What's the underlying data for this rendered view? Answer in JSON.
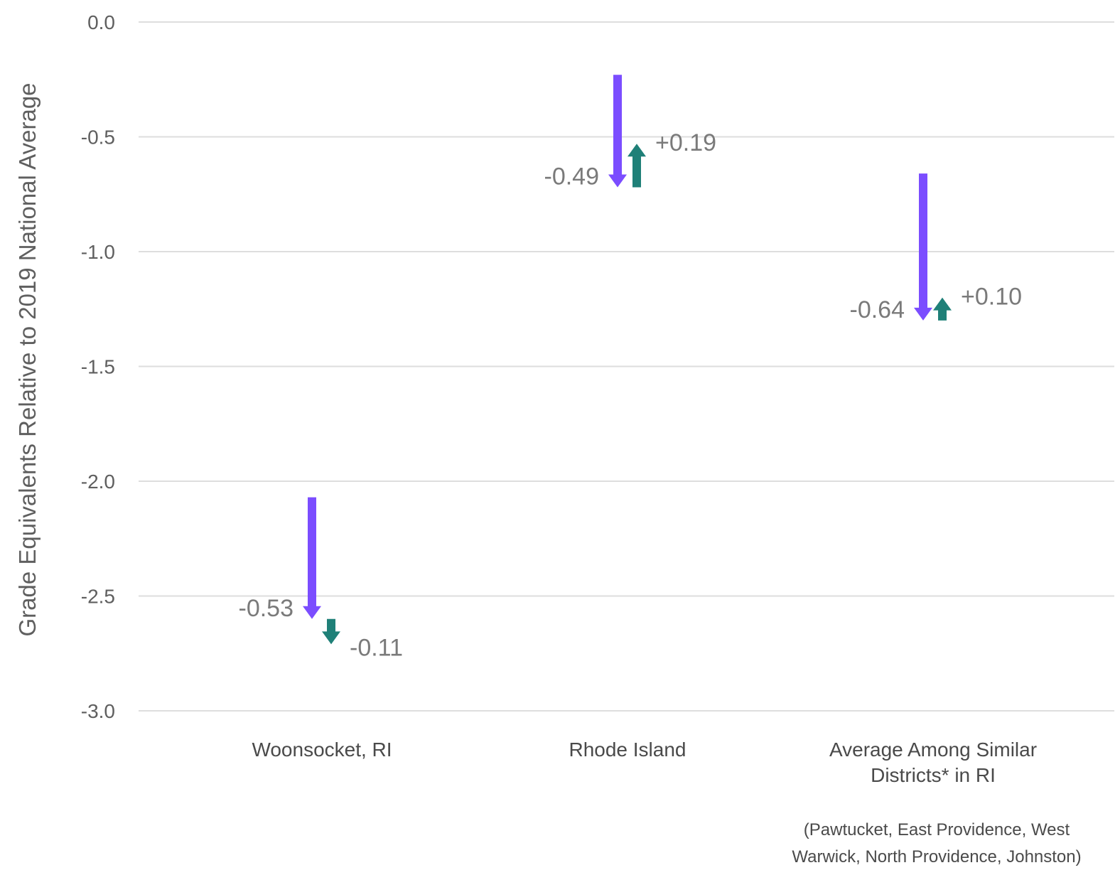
{
  "chart_data": {
    "type": "arrow",
    "ylabel": "Grade Equivalents Relative to 2019 National Average",
    "ylim": [
      -3.0,
      0.0
    ],
    "yticks": [
      "0.0",
      "-0.5",
      "-1.0",
      "-1.5",
      "-2.0",
      "-2.5",
      "-3.0"
    ],
    "grid": true,
    "categories": [
      [
        "Woonsocket, RI"
      ],
      [
        "Rhode Island"
      ],
      [
        "Average Among Similar",
        "Districts* in RI"
      ]
    ],
    "series": [
      {
        "color": "#7b4dff",
        "values": [
          {
            "start": -2.07,
            "end": -2.6,
            "label": "-0.53"
          },
          {
            "start": -0.23,
            "end": -0.72,
            "label": "-0.49"
          },
          {
            "start": -0.66,
            "end": -1.3,
            "label": "-0.64"
          }
        ]
      },
      {
        "color": "#1f8078",
        "values": [
          {
            "start": -2.6,
            "end": -2.71,
            "label": "-0.11"
          },
          {
            "start": -0.72,
            "end": -0.53,
            "label": "+0.19"
          },
          {
            "start": -1.3,
            "end": -1.2,
            "label": "+0.10"
          }
        ]
      }
    ],
    "note": [
      "(Pawtucket, East Providence, West",
      "Warwick, North Providence, Johnston)"
    ]
  }
}
